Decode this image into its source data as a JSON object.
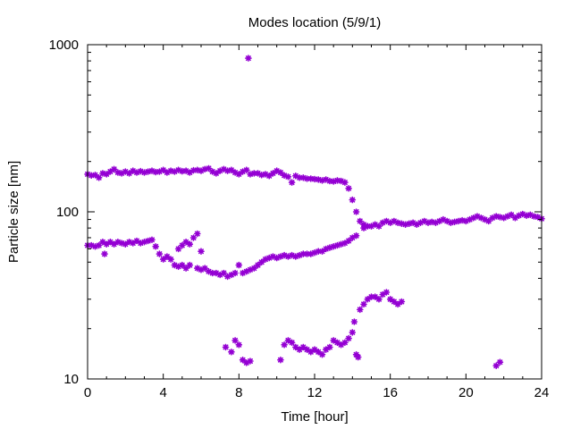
{
  "chart_data": {
    "type": "scatter",
    "title": "Modes location (5/9/1)",
    "xlabel": "Time [hour]",
    "ylabel": "Particle size [nm]",
    "xlim": [
      0,
      24
    ],
    "ylim": [
      10,
      1000
    ],
    "yscale": "log",
    "grid": false,
    "legend": "none",
    "marker": "asterisk",
    "color": "#9400d3",
    "x_ticks": [
      0,
      4,
      8,
      12,
      16,
      20,
      24
    ],
    "x_tick_labels": [
      "0",
      "4",
      "8",
      "12",
      "16",
      "20",
      "24"
    ],
    "y_ticks": [
      10,
      100,
      1000
    ],
    "y_tick_labels": [
      "10",
      "100",
      "1000"
    ],
    "series": [
      {
        "points": [
          [
            0.0,
            168
          ],
          [
            0.2,
            165
          ],
          [
            0.4,
            166
          ],
          [
            0.6,
            160
          ],
          [
            0.8,
            170
          ],
          [
            1.0,
            168
          ],
          [
            1.2,
            174
          ],
          [
            1.4,
            180
          ],
          [
            1.6,
            172
          ],
          [
            1.8,
            170
          ],
          [
            2.0,
            174
          ],
          [
            2.2,
            170
          ],
          [
            2.4,
            176
          ],
          [
            2.6,
            172
          ],
          [
            2.8,
            175
          ],
          [
            3.0,
            172
          ],
          [
            3.2,
            174
          ],
          [
            3.4,
            176
          ],
          [
            3.6,
            173
          ],
          [
            3.8,
            174
          ],
          [
            4.0,
            178
          ],
          [
            4.2,
            172
          ],
          [
            4.4,
            176
          ],
          [
            4.6,
            174
          ],
          [
            4.8,
            178
          ],
          [
            5.0,
            175
          ],
          [
            5.2,
            176
          ],
          [
            5.4,
            172
          ],
          [
            5.6,
            177
          ],
          [
            5.8,
            178
          ],
          [
            6.0,
            176
          ],
          [
            6.2,
            180
          ],
          [
            6.4,
            182
          ],
          [
            6.6,
            174
          ],
          [
            6.8,
            170
          ],
          [
            7.0,
            176
          ],
          [
            7.2,
            180
          ],
          [
            7.4,
            176
          ],
          [
            7.6,
            178
          ],
          [
            7.8,
            172
          ],
          [
            8.0,
            168
          ],
          [
            8.2,
            174
          ],
          [
            8.4,
            178
          ],
          [
            8.6,
            168
          ],
          [
            8.8,
            170
          ],
          [
            9.0,
            170
          ],
          [
            9.2,
            166
          ],
          [
            9.4,
            168
          ],
          [
            9.6,
            164
          ],
          [
            9.8,
            170
          ],
          [
            10.0,
            176
          ],
          [
            10.2,
            172
          ],
          [
            10.4,
            165
          ],
          [
            10.6,
            162
          ],
          [
            10.8,
            150
          ],
          [
            11.0,
            164
          ],
          [
            11.2,
            160
          ],
          [
            11.4,
            160
          ],
          [
            11.6,
            158
          ],
          [
            11.8,
            158
          ],
          [
            12.0,
            157
          ],
          [
            12.2,
            156
          ],
          [
            12.4,
            154
          ],
          [
            12.6,
            156
          ],
          [
            12.8,
            153
          ],
          [
            13.0,
            152
          ],
          [
            13.2,
            154
          ],
          [
            13.4,
            153
          ],
          [
            13.6,
            150
          ],
          [
            13.8,
            138
          ],
          [
            14.0,
            118
          ],
          [
            14.2,
            100
          ],
          [
            14.4,
            88
          ],
          [
            14.6,
            84
          ],
          [
            14.8,
            82
          ]
        ]
      },
      {
        "points": [
          [
            0.0,
            63
          ],
          [
            0.2,
            63
          ],
          [
            0.4,
            62
          ],
          [
            0.6,
            63
          ],
          [
            0.8,
            66
          ],
          [
            0.9,
            56
          ],
          [
            1.0,
            64
          ],
          [
            1.2,
            66
          ],
          [
            1.4,
            64
          ],
          [
            1.6,
            66
          ],
          [
            1.8,
            65
          ],
          [
            2.0,
            64
          ],
          [
            2.2,
            66
          ],
          [
            2.4,
            65
          ],
          [
            2.6,
            67
          ],
          [
            2.8,
            65
          ],
          [
            3.0,
            66
          ],
          [
            3.2,
            67
          ],
          [
            3.4,
            68
          ],
          [
            3.6,
            62
          ],
          [
            3.8,
            56
          ],
          [
            4.0,
            52
          ],
          [
            4.2,
            54
          ],
          [
            4.4,
            52
          ],
          [
            4.6,
            48
          ],
          [
            4.8,
            47
          ],
          [
            5.0,
            48
          ],
          [
            5.2,
            46
          ],
          [
            5.4,
            48
          ],
          [
            5.8,
            46
          ],
          [
            6.0,
            45
          ],
          [
            6.2,
            46
          ],
          [
            6.4,
            44
          ],
          [
            6.6,
            43
          ],
          [
            6.8,
            43
          ],
          [
            7.0,
            42
          ],
          [
            7.2,
            43
          ],
          [
            7.4,
            41
          ],
          [
            7.6,
            42
          ],
          [
            7.8,
            43
          ],
          [
            8.0,
            48
          ],
          [
            8.2,
            43
          ],
          [
            8.4,
            44
          ],
          [
            8.6,
            45
          ],
          [
            8.8,
            46
          ],
          [
            9.0,
            48
          ],
          [
            9.2,
            50
          ],
          [
            9.4,
            52
          ],
          [
            9.6,
            53
          ],
          [
            9.8,
            54
          ],
          [
            10.0,
            53
          ],
          [
            10.2,
            54
          ],
          [
            10.4,
            55
          ],
          [
            10.6,
            54
          ],
          [
            10.8,
            55
          ],
          [
            11.0,
            54
          ],
          [
            11.2,
            55
          ],
          [
            11.4,
            56
          ],
          [
            11.6,
            56
          ],
          [
            11.8,
            56
          ],
          [
            12.0,
            57
          ],
          [
            12.2,
            58
          ],
          [
            12.4,
            58
          ],
          [
            12.6,
            60
          ],
          [
            12.8,
            61
          ],
          [
            13.0,
            62
          ],
          [
            13.2,
            63
          ],
          [
            13.4,
            64
          ],
          [
            13.6,
            65
          ],
          [
            13.8,
            67
          ],
          [
            14.0,
            70
          ],
          [
            14.2,
            72
          ],
          [
            14.6,
            80
          ],
          [
            15.0,
            82
          ],
          [
            15.2,
            84
          ],
          [
            15.4,
            82
          ],
          [
            15.6,
            86
          ],
          [
            15.8,
            88
          ],
          [
            16.0,
            86
          ],
          [
            16.2,
            88
          ],
          [
            16.4,
            86
          ],
          [
            16.6,
            85
          ],
          [
            16.8,
            84
          ],
          [
            17.0,
            85
          ],
          [
            17.2,
            86
          ],
          [
            17.4,
            84
          ],
          [
            17.6,
            86
          ],
          [
            17.8,
            88
          ],
          [
            18.0,
            86
          ],
          [
            18.2,
            87
          ],
          [
            18.4,
            86
          ],
          [
            18.6,
            88
          ],
          [
            18.8,
            90
          ],
          [
            19.0,
            88
          ],
          [
            19.2,
            86
          ],
          [
            19.4,
            87
          ],
          [
            19.6,
            88
          ],
          [
            19.8,
            89
          ],
          [
            20.0,
            88
          ],
          [
            20.2,
            90
          ],
          [
            20.4,
            92
          ],
          [
            20.6,
            94
          ],
          [
            20.8,
            92
          ],
          [
            21.0,
            90
          ],
          [
            21.2,
            88
          ],
          [
            21.4,
            92
          ],
          [
            21.6,
            94
          ],
          [
            21.8,
            93
          ],
          [
            22.0,
            92
          ],
          [
            22.2,
            94
          ],
          [
            22.4,
            96
          ],
          [
            22.6,
            92
          ],
          [
            22.8,
            95
          ],
          [
            23.0,
            97
          ],
          [
            23.2,
            95
          ],
          [
            23.4,
            96
          ],
          [
            23.6,
            94
          ],
          [
            23.8,
            93
          ],
          [
            24.0,
            91
          ]
        ]
      },
      {
        "points": [
          [
            4.8,
            60
          ],
          [
            5.0,
            63
          ],
          [
            5.2,
            66
          ],
          [
            5.4,
            64
          ],
          [
            5.6,
            70
          ],
          [
            5.8,
            74
          ],
          [
            6.0,
            58
          ]
        ]
      },
      {
        "points": [
          [
            7.3,
            15.5
          ],
          [
            7.6,
            14.5
          ],
          [
            7.8,
            17
          ],
          [
            8.0,
            16
          ],
          [
            8.2,
            13
          ],
          [
            8.4,
            12.5
          ],
          [
            8.6,
            12.8
          ]
        ]
      },
      {
        "points": [
          [
            10.2,
            13
          ],
          [
            10.4,
            16
          ],
          [
            10.6,
            17
          ],
          [
            10.8,
            16.5
          ],
          [
            11.0,
            15.5
          ],
          [
            11.2,
            15
          ],
          [
            11.4,
            15.5
          ],
          [
            11.6,
            15
          ],
          [
            11.8,
            14.5
          ],
          [
            12.0,
            15
          ],
          [
            12.2,
            14.5
          ],
          [
            12.4,
            14
          ],
          [
            12.6,
            15
          ],
          [
            12.8,
            15.5
          ],
          [
            13.0,
            17
          ],
          [
            13.2,
            16.5
          ],
          [
            13.4,
            16
          ],
          [
            13.6,
            16.5
          ],
          [
            13.8,
            17.5
          ],
          [
            14.0,
            19
          ],
          [
            14.1,
            22
          ],
          [
            14.2,
            14
          ],
          [
            14.3,
            13.5
          ],
          [
            14.4,
            26
          ],
          [
            14.6,
            28
          ],
          [
            14.8,
            30
          ],
          [
            15.0,
            31
          ],
          [
            15.2,
            31
          ],
          [
            15.4,
            30
          ],
          [
            15.6,
            32
          ],
          [
            15.8,
            33
          ],
          [
            16.0,
            30
          ],
          [
            16.2,
            29
          ],
          [
            16.4,
            28
          ],
          [
            16.6,
            29
          ]
        ]
      },
      {
        "points": [
          [
            8.5,
            830
          ],
          [
            21.6,
            12
          ],
          [
            21.8,
            12.6
          ]
        ]
      }
    ]
  }
}
